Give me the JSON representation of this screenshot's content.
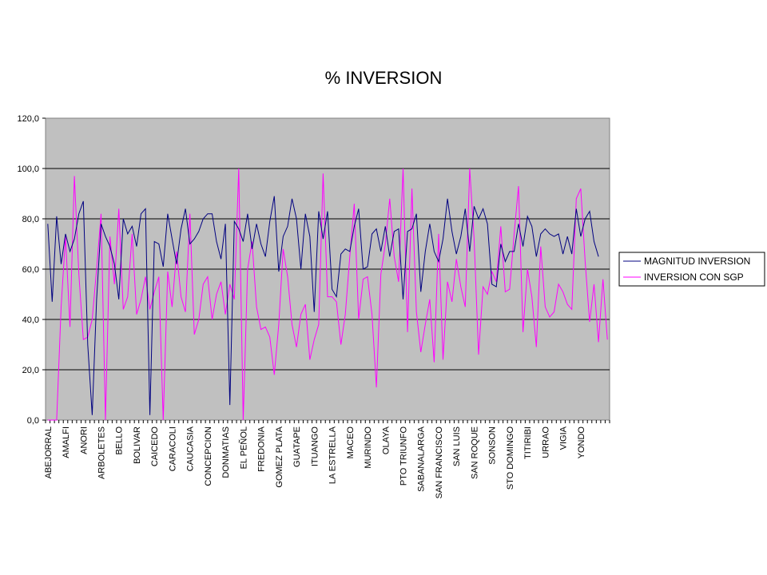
{
  "chart_data": {
    "type": "line",
    "title": "% INVERSION",
    "ylim": [
      0,
      120
    ],
    "yticks": [
      "0,0",
      "20,0",
      "40,0",
      "60,0",
      "80,0",
      "100,0",
      "120,0"
    ],
    "ytick_values": [
      0,
      20,
      40,
      60,
      80,
      100,
      120
    ],
    "grid": true,
    "legend_position": "right",
    "plot_background": "#c0c0c0",
    "category_labels": [
      "ABEJORRAL",
      "AMALFI",
      "ANORI",
      "ARBOLETES",
      "BELLO",
      "BOLIVAR",
      "CAICEDO",
      "CARACOLI",
      "CAUCASIA",
      "CONCEPCION",
      "DONMATIAS",
      "EL PEÑOL",
      "FREDONIA",
      "GOMEZ PLATA",
      "GUATAPE",
      "ITUANGO",
      "LA ESTRELLA",
      "MACEO",
      "MURINDO",
      "OLAYA",
      "PTO TRIUNFO",
      "SABANALARGA",
      "SAN FRANCISCO",
      "SAN LUIS",
      "SAN ROQUE",
      "SONSON",
      "STO DOMINGO",
      "TITIRIBI",
      "URRAO",
      "VIGIA",
      "YONDO"
    ],
    "series": [
      {
        "name": "MAGNITUD INVERSION",
        "color": "#000080",
        "values": [
          78,
          47,
          81,
          62,
          74,
          67,
          72,
          82,
          87,
          30,
          2,
          48,
          78,
          73,
          69,
          62,
          48,
          80,
          74,
          77,
          69,
          82,
          84,
          2,
          71,
          70,
          61,
          82,
          72,
          62,
          76,
          84,
          70,
          72,
          75,
          80,
          82,
          82,
          71,
          64,
          78,
          6,
          79,
          76,
          71,
          82,
          68,
          78,
          70,
          65,
          79,
          89,
          59,
          73,
          77,
          88,
          80,
          60,
          82,
          73,
          43,
          83,
          72,
          83,
          52,
          49,
          66,
          68,
          67,
          77,
          84,
          60,
          61,
          74,
          76,
          67,
          77,
          65,
          75,
          76,
          48,
          75,
          76,
          82,
          51,
          67,
          78,
          67,
          63,
          72,
          88,
          75,
          66,
          73,
          84,
          67,
          85,
          80,
          84,
          78,
          54,
          53,
          70,
          63,
          67,
          67,
          78,
          69,
          81,
          77,
          65,
          74,
          76,
          74,
          73,
          74,
          66,
          73,
          66,
          84,
          73,
          80,
          83,
          71,
          65
        ],
        "values_end_index": 124
      },
      {
        "name": "INVERSION CON SGP",
        "color": "#ff00ff",
        "values": [
          0,
          0,
          0,
          45,
          73,
          37,
          97,
          58,
          32,
          33,
          40,
          60,
          82,
          0,
          73,
          54,
          84,
          44,
          49,
          74,
          42,
          48,
          57,
          44,
          51,
          57,
          0,
          59,
          45,
          67,
          49,
          43,
          82,
          34,
          40,
          54,
          57,
          40,
          50,
          55,
          42,
          54,
          48,
          100,
          0,
          60,
          71,
          45,
          36,
          37,
          33,
          18,
          38,
          68,
          57,
          38,
          29,
          42,
          46,
          24,
          32,
          38,
          98,
          49,
          49,
          47,
          30,
          42,
          65,
          86,
          40,
          56,
          57,
          42,
          13,
          58,
          70,
          88,
          65,
          55,
          100,
          35,
          92,
          43,
          27,
          38,
          48,
          23,
          74,
          24,
          55,
          47,
          64,
          53,
          45,
          100,
          72,
          26,
          53,
          50,
          59,
          55,
          77,
          51,
          52,
          74,
          93,
          35,
          60,
          49,
          29,
          69,
          45,
          41,
          43,
          54,
          51,
          46,
          44,
          88,
          92,
          63,
          39,
          54,
          31,
          56,
          32
        ]
      }
    ]
  }
}
